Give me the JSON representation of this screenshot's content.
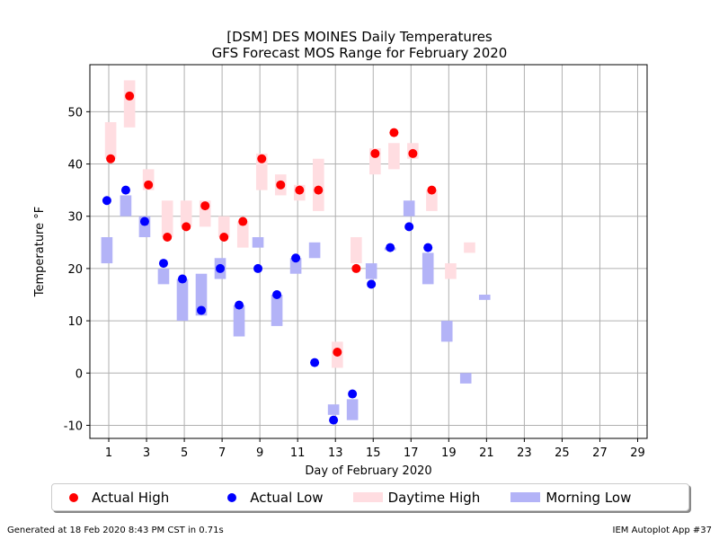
{
  "title_line1": "[DSM] DES MOINES Daily Temperatures",
  "title_line2": "GFS Forecast MOS Range for February 2020",
  "footer_left": "Generated at 18 Feb 2020 8:43 PM CST in 0.71s",
  "footer_right": "IEM Autoplot App #37",
  "colors": {
    "high": "#ff0000",
    "low": "#0000ff",
    "high_range": "#ffdde1",
    "low_range": "#b3b3f7",
    "grid": "#b0b0b0"
  },
  "legend": [
    {
      "label": "Actual High",
      "kind": "dot",
      "color": "#ff0000"
    },
    {
      "label": "Actual Low",
      "kind": "dot",
      "color": "#0000ff"
    },
    {
      "label": "Daytime High",
      "kind": "rect",
      "color": "#ffdde1"
    },
    {
      "label": "Morning Low",
      "kind": "rect",
      "color": "#b3b3f7"
    }
  ],
  "chart_data": {
    "type": "bar",
    "xlabel": "Day of February 2020",
    "ylabel": "Temperature °F",
    "xlim": [
      0.0,
      29.5
    ],
    "ylim": [
      -12.5,
      59
    ],
    "xticks": [
      1,
      3,
      5,
      7,
      9,
      11,
      13,
      15,
      17,
      19,
      21,
      23,
      25,
      27,
      29
    ],
    "yticks": [
      -10,
      0,
      10,
      20,
      30,
      40,
      50
    ],
    "grid": true,
    "legend_position": "bottom",
    "actual_high": [
      [
        1,
        41
      ],
      [
        2,
        53
      ],
      [
        3,
        36
      ],
      [
        4,
        26
      ],
      [
        5,
        28
      ],
      [
        6,
        32
      ],
      [
        7,
        26
      ],
      [
        8,
        29
      ],
      [
        9,
        41
      ],
      [
        10,
        36
      ],
      [
        11,
        35
      ],
      [
        12,
        35
      ],
      [
        13,
        4
      ],
      [
        14,
        20
      ],
      [
        15,
        42
      ],
      [
        16,
        46
      ],
      [
        17,
        42
      ],
      [
        18,
        35
      ]
    ],
    "actual_low": [
      [
        1,
        33
      ],
      [
        2,
        35
      ],
      [
        3,
        29
      ],
      [
        4,
        21
      ],
      [
        5,
        18
      ],
      [
        6,
        12
      ],
      [
        7,
        20
      ],
      [
        8,
        13
      ],
      [
        9,
        20
      ],
      [
        10,
        15
      ],
      [
        11,
        22
      ],
      [
        12,
        2
      ],
      [
        13,
        -9
      ],
      [
        14,
        -4
      ],
      [
        15,
        17
      ],
      [
        16,
        24
      ],
      [
        17,
        28
      ],
      [
        18,
        24
      ]
    ],
    "daytime_high_range": [
      [
        1,
        41,
        48
      ],
      [
        2,
        47,
        56
      ],
      [
        3,
        35,
        39
      ],
      [
        4,
        26,
        33
      ],
      [
        5,
        28,
        33
      ],
      [
        6,
        28,
        33
      ],
      [
        7,
        26,
        30
      ],
      [
        8,
        24,
        29
      ],
      [
        9,
        35,
        42
      ],
      [
        10,
        34,
        38
      ],
      [
        11,
        33,
        36
      ],
      [
        12,
        31,
        41
      ],
      [
        13,
        1,
        6
      ],
      [
        14,
        21,
        26
      ],
      [
        15,
        38,
        43
      ],
      [
        16,
        39,
        44
      ],
      [
        17,
        41,
        44
      ],
      [
        18,
        31,
        35
      ],
      [
        19,
        18,
        21
      ],
      [
        20,
        23,
        25
      ]
    ],
    "morning_low_range": [
      [
        1,
        21,
        26
      ],
      [
        2,
        30,
        34
      ],
      [
        3,
        26,
        30
      ],
      [
        4,
        17,
        20
      ],
      [
        5,
        10,
        18
      ],
      [
        6,
        11,
        19
      ],
      [
        7,
        18,
        22
      ],
      [
        8,
        7,
        13
      ],
      [
        9,
        24,
        26
      ],
      [
        10,
        9,
        15
      ],
      [
        11,
        19,
        22
      ],
      [
        12,
        22,
        25
      ],
      [
        13,
        -8,
        -6
      ],
      [
        14,
        -9,
        -5
      ],
      [
        15,
        18,
        21
      ],
      [
        16,
        23.5,
        24
      ],
      [
        17,
        30,
        33
      ],
      [
        18,
        17,
        23
      ],
      [
        19,
        6,
        10
      ],
      [
        20,
        -2,
        0
      ],
      [
        21,
        14,
        15
      ]
    ]
  }
}
